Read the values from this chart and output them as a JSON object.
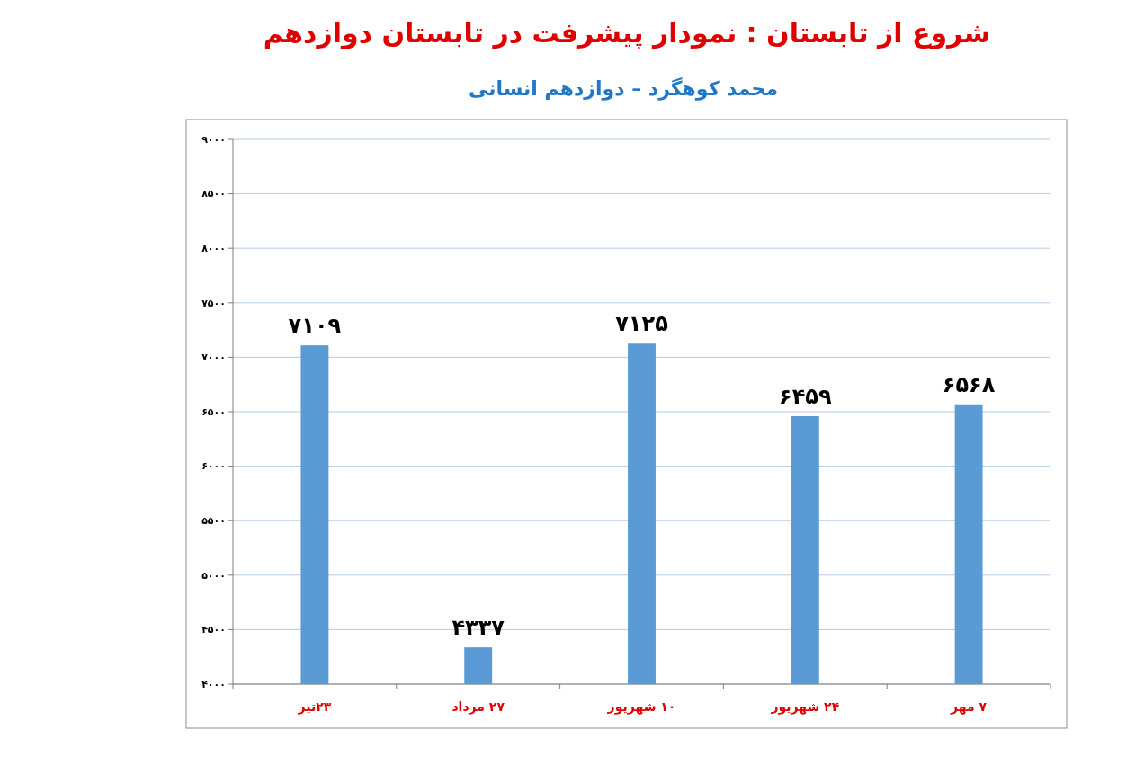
{
  "chart_data": {
    "type": "bar",
    "title": "شروع از تابستان : نمودار پیشرفت در تابستان دوازدهم",
    "subtitle": "محمد کوهگرد – دوازدهم انسانی",
    "categories": [
      "۲۳تیر",
      "۲۷ مرداد",
      "۱۰ شهریور",
      "۲۴ شهریور",
      "۷ مهر"
    ],
    "values": [
      7109,
      4337,
      7125,
      6459,
      6568
    ],
    "value_labels": [
      "۷۱۰۹",
      "۴۳۳۷",
      "۷۱۲۵",
      "۶۴۵۹",
      "۶۵۶۸"
    ],
    "color": "#5b9bd5",
    "ylim": [
      4000,
      9000
    ],
    "yticks": [
      {
        "value": 4000,
        "label": "۴۰۰۰"
      },
      {
        "value": 4500,
        "label": "۴۵۰۰"
      },
      {
        "value": 5000,
        "label": "۵۰۰۰"
      },
      {
        "value": 5500,
        "label": "۵۵۰۰"
      },
      {
        "value": 6000,
        "label": "۶۰۰۰"
      },
      {
        "value": 6500,
        "label": "۶۵۰۰"
      },
      {
        "value": 7000,
        "label": "۷۰۰۰"
      },
      {
        "value": 7500,
        "label": "۷۵۰۰"
      },
      {
        "value": 8000,
        "label": "۸۰۰۰"
      },
      {
        "value": 8500,
        "label": "۸۵۰۰"
      },
      {
        "value": 9000,
        "label": "۹۰۰۰"
      }
    ],
    "grid": "y"
  }
}
